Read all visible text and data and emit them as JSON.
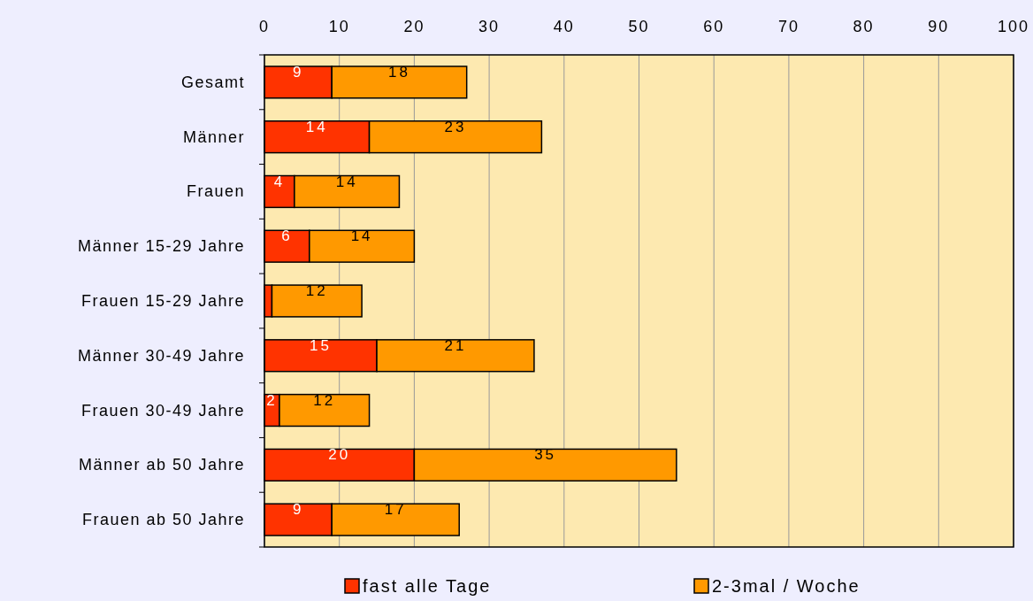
{
  "chart_data": {
    "type": "bar",
    "orientation": "horizontal",
    "stacked": true,
    "categories": [
      "Gesamt",
      "Männer",
      "Frauen",
      "Männer 15-29 Jahre",
      "Frauen 15-29 Jahre",
      "Männer 30-49 Jahre",
      "Frauen 30-49 Jahre",
      "Männer ab 50 Jahre",
      "Frauen ab 50 Jahre"
    ],
    "series": [
      {
        "name": "fast alle Tage",
        "color": "#ff3300",
        "values": [
          9,
          14,
          4,
          6,
          1,
          15,
          2,
          20,
          9
        ],
        "value_labels": [
          "9",
          "14",
          "4",
          "6",
          null,
          "15",
          "2",
          "20",
          "9"
        ]
      },
      {
        "name": "2-3mal / Woche",
        "color": "#ff9900",
        "values": [
          18,
          23,
          14,
          14,
          12,
          21,
          12,
          35,
          17
        ],
        "value_labels": [
          "18",
          "23",
          "14",
          "14",
          "12",
          "21",
          "12",
          "35",
          "17"
        ]
      }
    ],
    "xlim": [
      0,
      100
    ],
    "xticks": [
      0,
      10,
      20,
      30,
      40,
      50,
      60,
      70,
      80,
      90,
      100
    ],
    "grid": "x",
    "legend": "bottom"
  }
}
